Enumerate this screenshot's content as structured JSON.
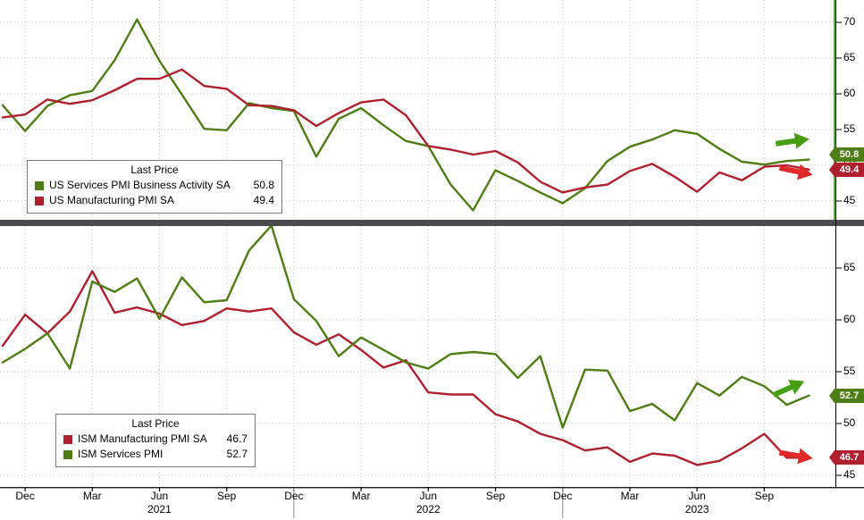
{
  "page": {
    "background": "#ffffff"
  },
  "colors": {
    "green_line": "#4e7d14",
    "red_line": "#b01f2e",
    "green_arrow": "#46a012",
    "red_arrow": "#e02a2a",
    "separator": "#4c4c50",
    "grid": "#c6c6c6",
    "axis": "#000000",
    "highlight_line": "#4db81f",
    "badge_text": "#ffffff"
  },
  "x_axis": {
    "tick_labels": [
      "Dec",
      "Mar",
      "Jun",
      "Sep",
      "Dec",
      "Mar",
      "Jun",
      "Sep",
      "Dec",
      "Mar",
      "Jun",
      "Sep"
    ],
    "tick_indices": [
      1,
      4,
      7,
      10,
      13,
      16,
      19,
      22,
      25,
      28,
      31,
      34
    ],
    "year_labels": [
      "2021",
      "2022",
      "2023"
    ],
    "year_tick_indices": [
      7,
      19,
      31
    ],
    "year_separator_indices": [
      13,
      25
    ]
  },
  "months": [
    "Nov-20",
    "Dec-20",
    "Jan-21",
    "Feb-21",
    "Mar-21",
    "Apr-21",
    "May-21",
    "Jun-21",
    "Jul-21",
    "Aug-21",
    "Sep-21",
    "Oct-21",
    "Nov-21",
    "Dec-21",
    "Jan-22",
    "Feb-22",
    "Mar-22",
    "Apr-22",
    "May-22",
    "Jun-22",
    "Jul-22",
    "Aug-22",
    "Sep-22",
    "Oct-22",
    "Nov-22",
    "Dec-22",
    "Jan-23",
    "Feb-23",
    "Mar-23",
    "Apr-23",
    "May-23",
    "Jun-23",
    "Jul-23",
    "Aug-23",
    "Sep-23",
    "Oct-23",
    "Nov-23"
  ],
  "chart_data": [
    {
      "type": "line",
      "panel": "top",
      "title": "",
      "x_frequency": "monthly",
      "x_range": [
        "Nov-20",
        "Nov-23"
      ],
      "ylim": [
        41.9,
        73.1
      ],
      "yticks": [
        45,
        50,
        55,
        60,
        65,
        70
      ],
      "grid": true,
      "legend_position": "inside-left",
      "series": [
        {
          "name": "US Services PMI Business Activity SA",
          "color": "#4e7d14",
          "last": "50.8",
          "values": [
            58.4,
            54.8,
            58.3,
            59.8,
            60.4,
            64.7,
            70.4,
            64.6,
            59.9,
            55.1,
            54.9,
            58.7,
            58.0,
            57.6,
            51.2,
            56.5,
            58.0,
            55.6,
            53.4,
            52.7,
            47.3,
            43.7,
            49.3,
            47.8,
            46.2,
            44.7,
            46.8,
            50.6,
            52.6,
            53.6,
            54.9,
            54.4,
            52.3,
            50.5,
            50.1,
            50.6,
            50.8
          ]
        },
        {
          "name": "US Manufacturing PMI SA",
          "color": "#b01f2e",
          "last": "49.4",
          "values": [
            56.7,
            57.1,
            59.2,
            58.6,
            59.1,
            60.5,
            62.1,
            62.1,
            63.4,
            61.1,
            60.7,
            58.4,
            58.3,
            57.7,
            55.5,
            57.3,
            58.8,
            59.2,
            57.0,
            52.7,
            52.2,
            51.5,
            52.0,
            50.4,
            47.7,
            46.2,
            46.9,
            47.3,
            49.2,
            50.2,
            48.4,
            46.3,
            49.0,
            47.9,
            49.8,
            50.0,
            49.4
          ]
        }
      ],
      "legend": {
        "title": "Last Price",
        "items": [
          {
            "label": "US Services PMI Business Activity SA",
            "value": "50.8"
          },
          {
            "label": "US Manufacturing PMI SA",
            "value": "49.4"
          }
        ]
      }
    },
    {
      "type": "line",
      "panel": "bottom",
      "title": "",
      "x_frequency": "monthly",
      "x_range": [
        "Nov-20",
        "Nov-23"
      ],
      "ylim": [
        43.9,
        69.1
      ],
      "yticks": [
        45,
        50,
        55,
        60,
        65
      ],
      "grid": true,
      "legend_position": "inside-left",
      "series": [
        {
          "name": "ISM Manufacturing PMI SA",
          "color": "#b01f2e",
          "last": "46.7",
          "values": [
            57.5,
            60.5,
            58.7,
            60.8,
            64.7,
            60.7,
            61.2,
            60.6,
            59.5,
            59.9,
            61.1,
            60.8,
            61.1,
            58.8,
            57.6,
            58.6,
            57.1,
            55.4,
            56.1,
            53.0,
            52.8,
            52.8,
            50.9,
            50.2,
            49.0,
            48.4,
            47.4,
            47.7,
            46.3,
            47.1,
            46.9,
            46.0,
            46.4,
            47.6,
            49.0,
            46.7,
            46.7
          ]
        },
        {
          "name": "ISM Services PMI",
          "color": "#4e7d14",
          "last": "52.7",
          "values": [
            55.9,
            57.2,
            58.7,
            55.3,
            63.7,
            62.7,
            64.0,
            60.1,
            64.1,
            61.7,
            61.9,
            66.7,
            69.1,
            62.0,
            59.9,
            56.5,
            58.3,
            57.1,
            55.9,
            55.3,
            56.7,
            56.9,
            56.7,
            54.4,
            56.5,
            49.6,
            55.2,
            55.1,
            51.2,
            51.9,
            50.3,
            53.9,
            52.7,
            54.5,
            53.6,
            51.8,
            52.7
          ]
        }
      ],
      "legend": {
        "title": "Last Price",
        "items": [
          {
            "label": "ISM Manufacturing PMI SA",
            "value": "46.7"
          },
          {
            "label": "ISM Services PMI",
            "value": "52.7"
          }
        ]
      }
    }
  ],
  "trend_arrows": [
    {
      "panel": "top",
      "direction": "up",
      "color": "#46a012"
    },
    {
      "panel": "top",
      "direction": "down",
      "color": "#e02a2a"
    },
    {
      "panel": "bottom",
      "direction": "up",
      "color": "#46a012"
    },
    {
      "panel": "bottom",
      "direction": "down",
      "color": "#e02a2a"
    }
  ]
}
